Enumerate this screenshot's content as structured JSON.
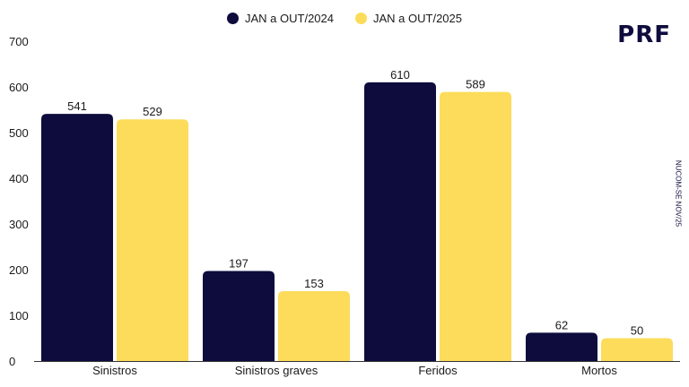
{
  "brand": {
    "logo_text": "PRF",
    "credit": "NUCOM-SE NOV/25"
  },
  "chart_data": {
    "type": "bar",
    "title": "",
    "xlabel": "",
    "ylabel": "",
    "categories": [
      "Sinistros",
      "Sinistros graves",
      "Feridos",
      "Mortos"
    ],
    "series": [
      {
        "name": "JAN a OUT/2024",
        "color": "#0e0c3d",
        "values": [
          541,
          197,
          610,
          62
        ]
      },
      {
        "name": "JAN a OUT/2025",
        "color": "#fcdc5a",
        "values": [
          529,
          153,
          589,
          50
        ]
      }
    ],
    "ylim": [
      0,
      700
    ],
    "yticks": [
      0,
      100,
      200,
      300,
      400,
      500,
      600,
      700
    ],
    "grid": false,
    "legend": "top-center"
  }
}
